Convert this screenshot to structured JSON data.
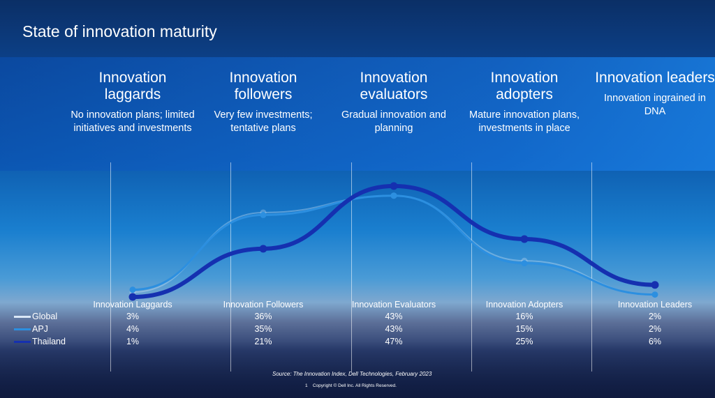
{
  "title": "State of innovation maturity",
  "stages": [
    {
      "heading": "Innovation laggards",
      "desc": "No innovation plans; limited initiatives and investments"
    },
    {
      "heading": "Innovation followers",
      "desc": "Very few investments; tentative plans"
    },
    {
      "heading": "Innovation evaluators",
      "desc": "Gradual innovation and planning"
    },
    {
      "heading": "Innovation adopters",
      "desc": "Mature innovation plans, investments in place"
    },
    {
      "heading": "Innovation leaders",
      "desc": "Innovation ingrained in DNA"
    }
  ],
  "chart_data": {
    "type": "line",
    "categories": [
      "Innovation Laggards",
      "Innovation Followers",
      "Innovation Evaluators",
      "Innovation Adopters",
      "Innovation Leaders"
    ],
    "series": [
      {
        "name": "Global",
        "values": [
          3,
          36,
          43,
          16,
          2
        ],
        "color": "#dbe8f7",
        "labels": [
          "3%",
          "36%",
          "43%",
          "16%",
          "2%"
        ]
      },
      {
        "name": "APJ",
        "values": [
          4,
          35,
          43,
          15,
          2
        ],
        "color": "#2c8fe0",
        "labels": [
          "4%",
          "35%",
          "43%",
          "15%",
          "2%"
        ]
      },
      {
        "name": "Thailand",
        "values": [
          1,
          21,
          47,
          25,
          6
        ],
        "color": "#1530b0",
        "labels": [
          "1%",
          "21%",
          "47%",
          "25%",
          "6%"
        ]
      }
    ],
    "unit": "%",
    "legend": "bottom-left table",
    "grid": false
  },
  "source": "Source: The Innovation Index, Dell Technologies, February 2023",
  "page_number": "1",
  "copyright": "Copyright © Dell Inc. All Rights Reserved."
}
